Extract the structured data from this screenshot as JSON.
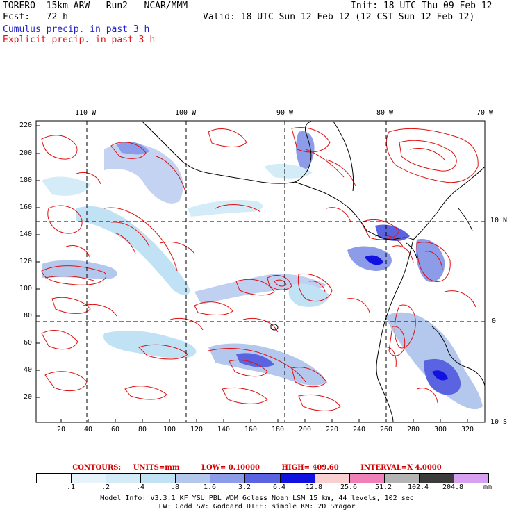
{
  "header": {
    "model_line": "TORERO  15km ARW   Run2   NCAR/MMM",
    "init": "Init: 18 UTC Thu 09 Feb 12",
    "fcst": "Fcst:   72 h",
    "valid": "Valid: 18 UTC Sun 12 Feb 12 (12 CST Sun 12 Feb 12)",
    "cumulus_label": "Cumulus precip. in past 3 h",
    "explicit_label": "Explicit precip. in past 3 h"
  },
  "colors": {
    "cumulus": "#1f1fcc",
    "explicit": "#e01010",
    "land_line": "#000000"
  },
  "map": {
    "lon_labels": [
      "110 W",
      "100 W",
      "90 W",
      "80 W",
      "70 W"
    ],
    "lat_labels": [
      "10 N",
      "0",
      "10 S"
    ],
    "y_ticks": [
      "220",
      "200",
      "180",
      "160",
      "140",
      "120",
      "100",
      "80",
      "60",
      "40",
      "20"
    ],
    "x_ticks": [
      "20",
      "40",
      "60",
      "80",
      "100",
      "120",
      "140",
      "160",
      "180",
      "200",
      "220",
      "240",
      "260",
      "280",
      "300",
      "320"
    ]
  },
  "contours": {
    "title": "CONTOURS:",
    "units": "UNITS=mm",
    "low": "LOW= 0.10000",
    "high": "HIGH=  409.60",
    "interval": "INTERVAL=X  4.0000"
  },
  "scale": {
    "labels": [
      ".1",
      ".2",
      ".4",
      ".8",
      "1.6",
      "3.2",
      "6.4",
      "12.8",
      "25.6",
      "51.2",
      "102.4",
      "204.8"
    ],
    "unit": "mm",
    "colors": [
      "#ffffff",
      "#e8f4fb",
      "#d4ecf8",
      "#c0e2f4",
      "#b4c8ee",
      "#8c9ce8",
      "#5a64e0",
      "#1212e0",
      "#f8d0d0",
      "#f080b8",
      "#b4b4b4",
      "#3c3c3c",
      "#d8a0f0"
    ]
  },
  "info": {
    "line1": "Model Info: V3.3.1   KF    YSU PBL  WDM 6class  Noah LSM  15 km,   44 levels,  102 sec",
    "line2": "LW: Godd SW: Goddard DIFF: simple KM: 2D Smagor"
  }
}
